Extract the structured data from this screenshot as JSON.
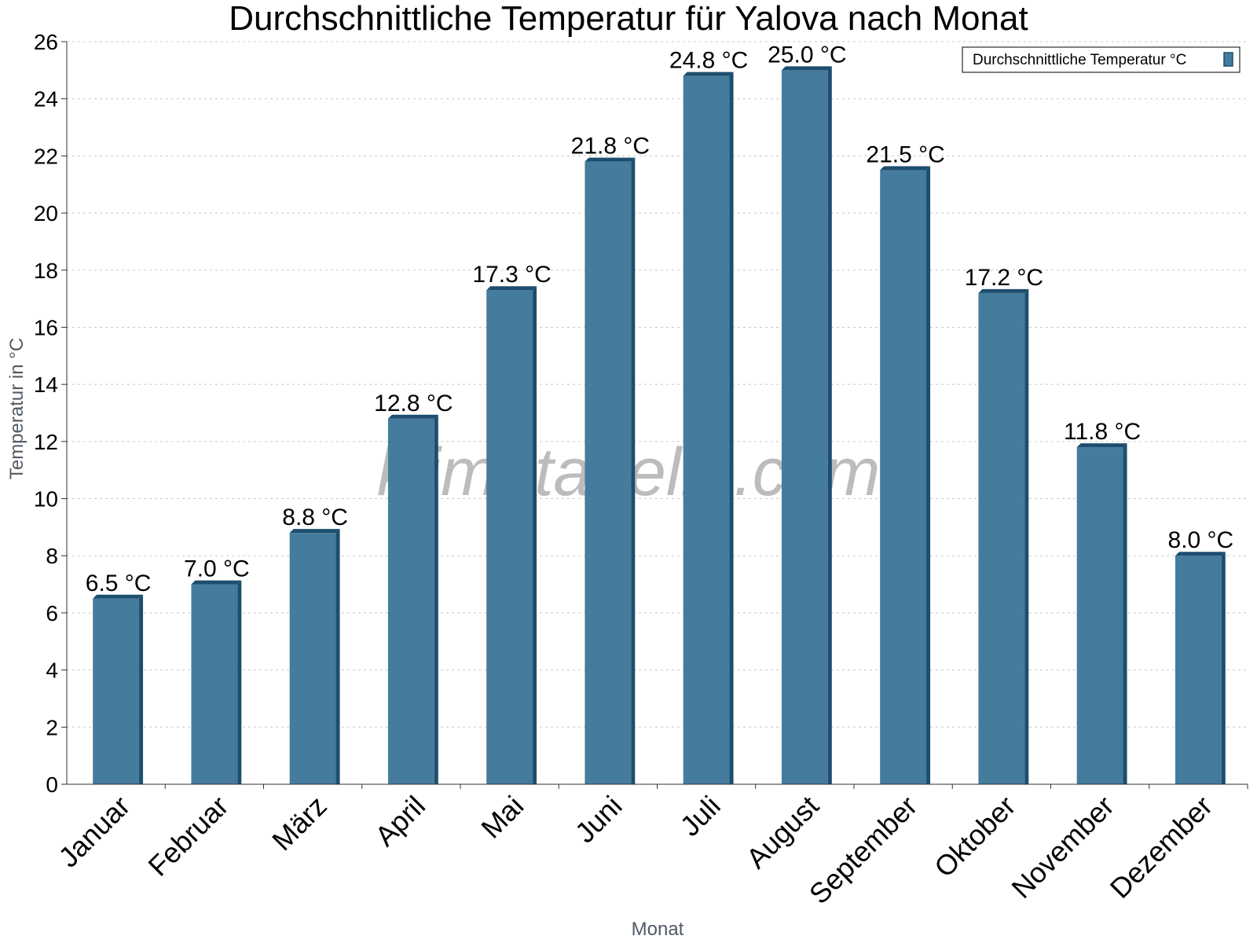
{
  "chart_data": {
    "type": "bar",
    "title": "Durchschnittliche Temperatur für Yalova nach Monat",
    "xlabel": "Monat",
    "ylabel": "Temperatur in °C",
    "categories": [
      "Januar",
      "Februar",
      "März",
      "April",
      "Mai",
      "Juni",
      "Juli",
      "August",
      "September",
      "Oktober",
      "November",
      "Dezember"
    ],
    "series": [
      {
        "name": "Durchschnittliche Temperatur °C",
        "values": [
          6.5,
          7.0,
          8.8,
          12.8,
          17.3,
          21.8,
          24.8,
          25.0,
          21.5,
          17.2,
          11.8,
          8.0
        ],
        "labels": [
          "6.5 °C",
          "7.0 °C",
          "8.8 °C",
          "12.8 °C",
          "17.3 °C",
          "21.8 °C",
          "24.8 °C",
          "25.0 °C",
          "21.5 °C",
          "17.2 °C",
          "11.8 °C",
          "8.0 °C"
        ]
      }
    ],
    "ylim": [
      0,
      26
    ],
    "yticks": [
      0,
      2,
      4,
      6,
      8,
      10,
      12,
      14,
      16,
      18,
      20,
      22,
      24,
      26
    ],
    "grid": true,
    "legend_position": "top-right",
    "colors": {
      "bar": "#457b9d",
      "bar_side": "#1d4e6e",
      "grid": "#c8c8c8",
      "axis": "#333333"
    },
    "watermark": "klimatabelle.com"
  }
}
